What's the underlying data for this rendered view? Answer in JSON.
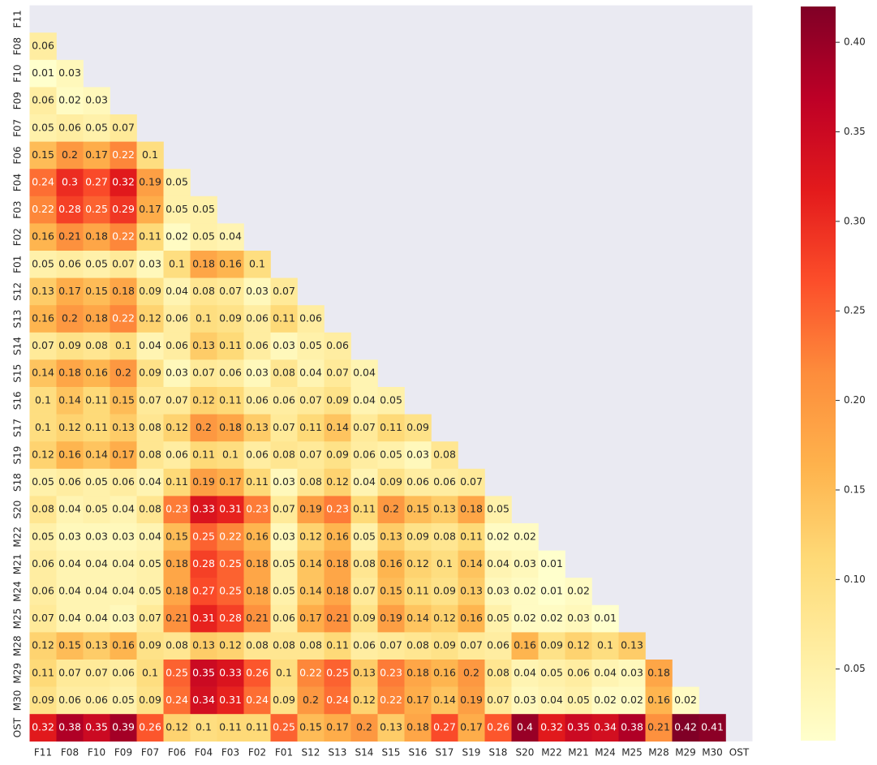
{
  "chart_data": {
    "type": "heatmap",
    "colormap": "YlOrRd",
    "labels": [
      "F11",
      "F08",
      "F10",
      "F09",
      "F07",
      "F06",
      "F04",
      "F03",
      "F02",
      "F01",
      "S12",
      "S13",
      "S14",
      "S15",
      "S16",
      "S17",
      "S19",
      "S18",
      "S20",
      "M22",
      "M21",
      "M24",
      "M25",
      "M28",
      "M29",
      "M30",
      "OST"
    ],
    "values": [
      [],
      [
        0.06
      ],
      [
        0.01,
        0.03
      ],
      [
        0.06,
        0.02,
        0.03
      ],
      [
        0.05,
        0.06,
        0.05,
        0.07
      ],
      [
        0.15,
        0.2,
        0.17,
        0.22,
        0.1
      ],
      [
        0.24,
        0.3,
        0.27,
        0.32,
        0.19,
        0.05
      ],
      [
        0.22,
        0.28,
        0.25,
        0.29,
        0.17,
        0.05,
        0.05
      ],
      [
        0.16,
        0.21,
        0.18,
        0.22,
        0.11,
        0.02,
        0.05,
        0.04
      ],
      [
        0.05,
        0.06,
        0.05,
        0.07,
        0.03,
        0.1,
        0.18,
        0.16,
        0.1
      ],
      [
        0.13,
        0.17,
        0.15,
        0.18,
        0.09,
        0.04,
        0.08,
        0.07,
        0.03,
        0.07
      ],
      [
        0.16,
        0.2,
        0.18,
        0.22,
        0.12,
        0.06,
        0.1,
        0.09,
        0.06,
        0.11,
        0.06
      ],
      [
        0.07,
        0.09,
        0.08,
        0.1,
        0.04,
        0.06,
        0.13,
        0.11,
        0.06,
        0.03,
        0.05,
        0.06
      ],
      [
        0.14,
        0.18,
        0.16,
        0.2,
        0.09,
        0.03,
        0.07,
        0.06,
        0.03,
        0.08,
        0.04,
        0.07,
        0.04
      ],
      [
        0.1,
        0.14,
        0.11,
        0.15,
        0.07,
        0.07,
        0.12,
        0.11,
        0.06,
        0.06,
        0.07,
        0.09,
        0.04,
        0.05
      ],
      [
        0.1,
        0.12,
        0.11,
        0.13,
        0.08,
        0.12,
        0.2,
        0.18,
        0.13,
        0.07,
        0.11,
        0.14,
        0.07,
        0.11,
        0.09
      ],
      [
        0.12,
        0.16,
        0.14,
        0.17,
        0.08,
        0.06,
        0.11,
        0.1,
        0.06,
        0.08,
        0.07,
        0.09,
        0.06,
        0.05,
        0.03,
        0.08
      ],
      [
        0.05,
        0.06,
        0.05,
        0.06,
        0.04,
        0.11,
        0.19,
        0.17,
        0.11,
        0.03,
        0.08,
        0.12,
        0.04,
        0.09,
        0.06,
        0.06,
        0.07
      ],
      [
        0.08,
        0.04,
        0.05,
        0.04,
        0.08,
        0.23,
        0.33,
        0.31,
        0.23,
        0.07,
        0.19,
        0.23,
        0.11,
        0.2,
        0.15,
        0.13,
        0.18,
        0.05
      ],
      [
        0.05,
        0.03,
        0.03,
        0.03,
        0.04,
        0.15,
        0.25,
        0.22,
        0.16,
        0.03,
        0.12,
        0.16,
        0.05,
        0.13,
        0.09,
        0.08,
        0.11,
        0.02,
        0.02
      ],
      [
        0.06,
        0.04,
        0.04,
        0.04,
        0.05,
        0.18,
        0.28,
        0.25,
        0.18,
        0.05,
        0.14,
        0.18,
        0.08,
        0.16,
        0.12,
        0.1,
        0.14,
        0.04,
        0.03,
        0.01
      ],
      [
        0.06,
        0.04,
        0.04,
        0.04,
        0.05,
        0.18,
        0.27,
        0.25,
        0.18,
        0.05,
        0.14,
        0.18,
        0.07,
        0.15,
        0.11,
        0.09,
        0.13,
        0.03,
        0.02,
        0.01,
        0.02
      ],
      [
        0.07,
        0.04,
        0.04,
        0.03,
        0.07,
        0.21,
        0.31,
        0.28,
        0.21,
        0.06,
        0.17,
        0.21,
        0.09,
        0.19,
        0.14,
        0.12,
        0.16,
        0.05,
        0.02,
        0.02,
        0.03,
        0.01
      ],
      [
        0.12,
        0.15,
        0.13,
        0.16,
        0.09,
        0.08,
        0.13,
        0.12,
        0.08,
        0.08,
        0.08,
        0.11,
        0.06,
        0.07,
        0.08,
        0.09,
        0.07,
        0.06,
        0.16,
        0.09,
        0.12,
        0.1,
        0.13
      ],
      [
        0.11,
        0.07,
        0.07,
        0.06,
        0.1,
        0.25,
        0.35,
        0.33,
        0.26,
        0.1,
        0.22,
        0.25,
        0.13,
        0.23,
        0.18,
        0.16,
        0.2,
        0.08,
        0.04,
        0.05,
        0.06,
        0.04,
        0.03,
        0.18
      ],
      [
        0.09,
        0.06,
        0.06,
        0.05,
        0.09,
        0.24,
        0.34,
        0.31,
        0.24,
        0.09,
        0.2,
        0.24,
        0.12,
        0.22,
        0.17,
        0.14,
        0.19,
        0.07,
        0.03,
        0.04,
        0.05,
        0.02,
        0.02,
        0.16,
        0.02
      ],
      [
        0.32,
        0.38,
        0.35,
        0.39,
        0.26,
        0.12,
        0.1,
        0.11,
        0.11,
        0.25,
        0.15,
        0.17,
        0.2,
        0.13,
        0.18,
        0.27,
        0.17,
        0.26,
        0.4,
        0.32,
        0.35,
        0.34,
        0.38,
        0.21,
        0.42,
        0.41
      ]
    ],
    "clim": [
      0.01,
      0.42
    ],
    "cticks": [
      0.05,
      {
        "value": 0.1,
        "label": "0.10"
      },
      0.15,
      {
        "value": 0.2,
        "label": "0.20"
      },
      0.25,
      {
        "value": 0.3,
        "label": "0.30"
      },
      0.35,
      {
        "value": 0.4,
        "label": "0.40"
      }
    ]
  }
}
